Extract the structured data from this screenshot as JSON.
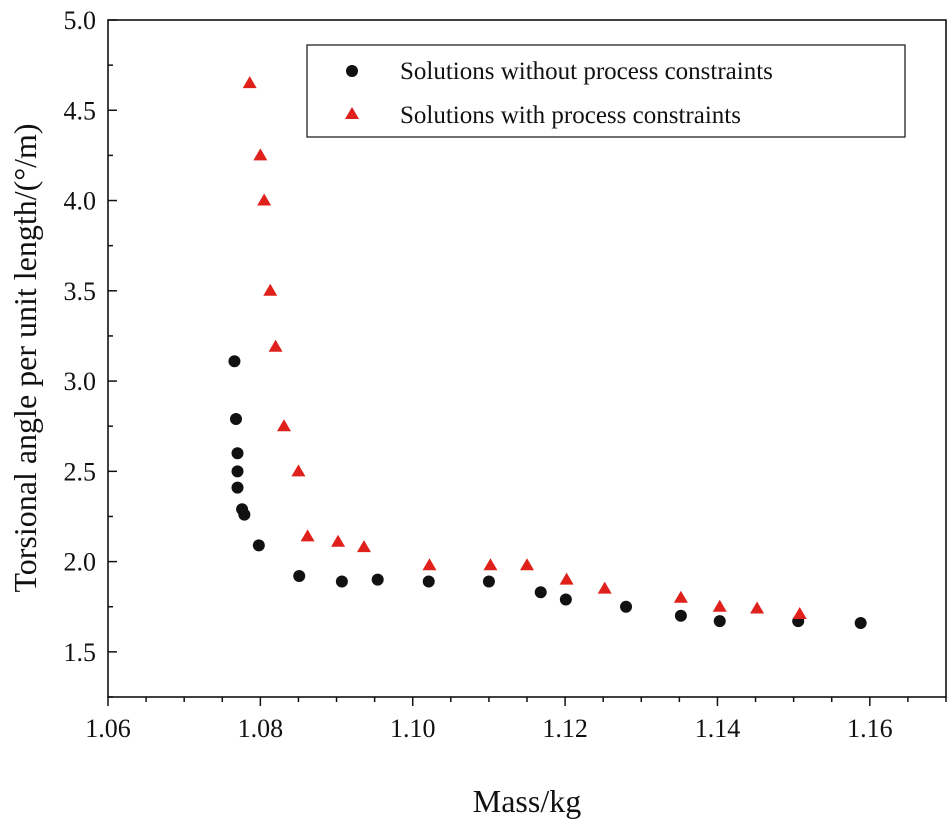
{
  "chart_data": {
    "type": "scatter",
    "xlabel": "Mass/kg",
    "ylabel": "Torsional angle per unit length/(°/m)",
    "xlim": [
      1.06,
      1.17
    ],
    "ylim": [
      1.25,
      5.0
    ],
    "x_ticks": [
      1.06,
      1.08,
      1.1,
      1.12,
      1.14,
      1.16
    ],
    "x_tick_labels": [
      "1.06",
      "1.08",
      "1.10",
      "1.12",
      "1.14",
      "1.16"
    ],
    "y_ticks": [
      1.5,
      2.0,
      2.5,
      3.0,
      3.5,
      4.0,
      4.5,
      5.0
    ],
    "y_tick_labels": [
      "1.5",
      "2.0",
      "2.5",
      "3.0",
      "3.5",
      "4.0",
      "4.5",
      "5.0"
    ],
    "legend_position": "top-right",
    "grid": false,
    "series": [
      {
        "name": "Solutions without process constraints",
        "marker": "circle",
        "color": "#111111",
        "points": [
          [
            1.0766,
            3.11
          ],
          [
            1.0768,
            2.79
          ],
          [
            1.077,
            2.6
          ],
          [
            1.077,
            2.5
          ],
          [
            1.077,
            2.41
          ],
          [
            1.0776,
            2.29
          ],
          [
            1.0779,
            2.26
          ],
          [
            1.0798,
            2.09
          ],
          [
            1.0851,
            1.92
          ],
          [
            1.0907,
            1.89
          ],
          [
            1.0954,
            1.9
          ],
          [
            1.1021,
            1.89
          ],
          [
            1.11,
            1.89
          ],
          [
            1.1168,
            1.83
          ],
          [
            1.1201,
            1.79
          ],
          [
            1.128,
            1.75
          ],
          [
            1.1352,
            1.7
          ],
          [
            1.1403,
            1.67
          ],
          [
            1.1506,
            1.67
          ],
          [
            1.1588,
            1.66
          ]
        ]
      },
      {
        "name": "Solutions with process constraints",
        "marker": "triangle",
        "color": "#e0201b",
        "points": [
          [
            1.0786,
            4.65
          ],
          [
            1.08,
            4.25
          ],
          [
            1.0805,
            4.0
          ],
          [
            1.0813,
            3.5
          ],
          [
            1.082,
            3.19
          ],
          [
            1.0831,
            2.75
          ],
          [
            1.085,
            2.5
          ],
          [
            1.0862,
            2.14
          ],
          [
            1.0902,
            2.11
          ],
          [
            1.0936,
            2.08
          ],
          [
            1.1022,
            1.98
          ],
          [
            1.1102,
            1.98
          ],
          [
            1.115,
            1.98
          ],
          [
            1.1202,
            1.9
          ],
          [
            1.1252,
            1.85
          ],
          [
            1.1352,
            1.8
          ],
          [
            1.1403,
            1.75
          ],
          [
            1.1452,
            1.74
          ],
          [
            1.1508,
            1.71
          ]
        ]
      }
    ]
  }
}
